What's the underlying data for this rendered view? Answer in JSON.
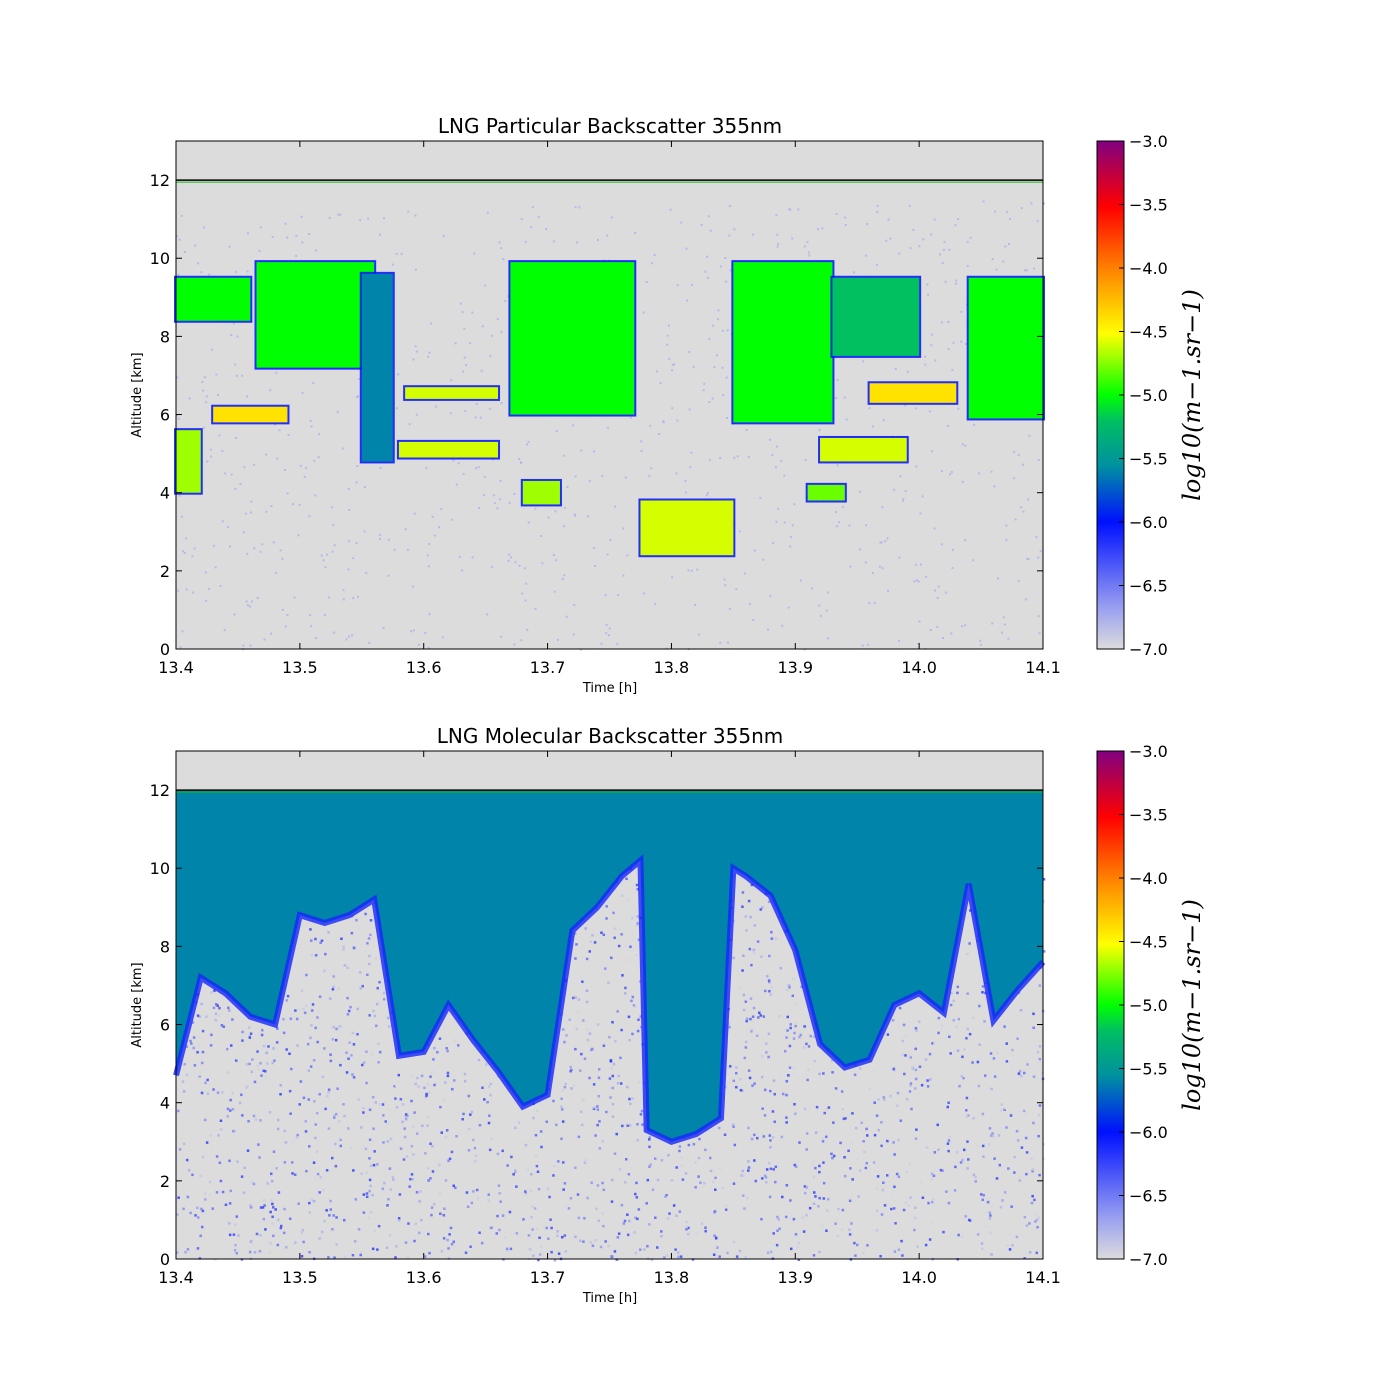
{
  "chart_data": [
    {
      "type": "heatmap",
      "title": "LNG Particular Backscatter 355nm",
      "xlabel": "Time [h]",
      "ylabel": "Altitude [km]",
      "xlim": [
        13.4,
        14.1
      ],
      "ylim": [
        0,
        13
      ],
      "xticks": [
        "13.4",
        "13.5",
        "13.6",
        "13.7",
        "13.8",
        "13.9",
        "14.0",
        "14.1"
      ],
      "yticks": [
        "0",
        "2",
        "4",
        "6",
        "8",
        "10",
        "12"
      ],
      "colorbar": {
        "label": "log10(m−1.sr−1)",
        "range": [
          -7.0,
          -3.0
        ],
        "ticks": [
          "−3.0",
          "−3.5",
          "−4.0",
          "−4.5",
          "−5.0",
          "−5.5",
          "−6.0",
          "−6.5",
          "−7.0"
        ]
      },
      "top_boundary_altitude_km": 12,
      "cloud_layers": [
        {
          "t0": 13.4,
          "t1": 13.46,
          "alt0": 8.4,
          "alt1": 9.5,
          "value": -5.0
        },
        {
          "t0": 13.465,
          "t1": 13.56,
          "alt0": 7.2,
          "alt1": 9.9,
          "value": -5.0
        },
        {
          "t0": 13.55,
          "t1": 13.575,
          "alt0": 4.8,
          "alt1": 9.6,
          "value": -5.6
        },
        {
          "t0": 13.58,
          "t1": 13.66,
          "alt0": 4.9,
          "alt1": 5.3,
          "value": -4.6
        },
        {
          "t0": 13.585,
          "t1": 13.66,
          "alt0": 6.4,
          "alt1": 6.7,
          "value": -4.6
        },
        {
          "t0": 13.43,
          "t1": 13.49,
          "alt0": 5.8,
          "alt1": 6.2,
          "value": -4.4
        },
        {
          "t0": 13.4,
          "t1": 13.42,
          "alt0": 4.0,
          "alt1": 5.6,
          "value": -4.7
        },
        {
          "t0": 13.67,
          "t1": 13.77,
          "alt0": 6.0,
          "alt1": 9.9,
          "value": -5.0
        },
        {
          "t0": 13.68,
          "t1": 13.71,
          "alt0": 3.7,
          "alt1": 4.3,
          "value": -4.7
        },
        {
          "t0": 13.775,
          "t1": 13.85,
          "alt0": 2.4,
          "alt1": 3.8,
          "value": -4.6
        },
        {
          "t0": 13.85,
          "t1": 13.93,
          "alt0": 5.8,
          "alt1": 9.9,
          "value": -5.0
        },
        {
          "t0": 13.93,
          "t1": 14.0,
          "alt0": 7.5,
          "alt1": 9.5,
          "value": -5.2
        },
        {
          "t0": 13.92,
          "t1": 13.99,
          "alt0": 4.8,
          "alt1": 5.4,
          "value": -4.6
        },
        {
          "t0": 13.96,
          "t1": 14.03,
          "alt0": 6.3,
          "alt1": 6.8,
          "value": -4.4
        },
        {
          "t0": 13.91,
          "t1": 13.94,
          "alt0": 3.8,
          "alt1": 4.2,
          "value": -4.8
        },
        {
          "t0": 14.04,
          "t1": 14.1,
          "alt0": 5.9,
          "alt1": 9.5,
          "value": -5.0
        }
      ]
    },
    {
      "type": "heatmap",
      "title": "LNG Molecular Backscatter 355nm",
      "xlabel": "Time [h]",
      "ylabel": "Altitude [km]",
      "xlim": [
        13.4,
        14.1
      ],
      "ylim": [
        0,
        13
      ],
      "xticks": [
        "13.4",
        "13.5",
        "13.6",
        "13.7",
        "13.8",
        "13.9",
        "14.0",
        "14.1"
      ],
      "yticks": [
        "0",
        "2",
        "4",
        "6",
        "8",
        "10",
        "12"
      ],
      "colorbar": {
        "label": "log10(m−1.sr−1)",
        "range": [
          -7.0,
          -3.0
        ],
        "ticks": [
          "−3.0",
          "−3.5",
          "−4.0",
          "−4.5",
          "−5.0",
          "−5.5",
          "−6.0",
          "−6.5",
          "−7.0"
        ]
      },
      "top_boundary_altitude_km": 12,
      "signal_floor_profile": {
        "time": [
          13.4,
          13.42,
          13.44,
          13.46,
          13.48,
          13.5,
          13.52,
          13.54,
          13.56,
          13.58,
          13.6,
          13.62,
          13.64,
          13.66,
          13.68,
          13.7,
          13.72,
          13.74,
          13.76,
          13.775,
          13.78,
          13.8,
          13.82,
          13.84,
          13.85,
          13.86,
          13.88,
          13.9,
          13.92,
          13.94,
          13.96,
          13.98,
          14.0,
          14.02,
          14.04,
          14.06,
          14.08,
          14.1
        ],
        "altitude_km": [
          4.7,
          7.2,
          6.8,
          6.2,
          6.0,
          8.8,
          8.6,
          8.8,
          9.2,
          5.2,
          5.3,
          6.5,
          5.6,
          4.8,
          3.9,
          4.2,
          8.4,
          9.0,
          9.8,
          10.2,
          3.3,
          3.0,
          3.2,
          3.6,
          10.0,
          9.8,
          9.3,
          7.9,
          5.5,
          4.9,
          5.1,
          6.5,
          6.8,
          6.3,
          9.6,
          6.1,
          6.9,
          7.6
        ]
      },
      "clear_air_value": -5.6,
      "below_floor_value": -6.6
    }
  ]
}
